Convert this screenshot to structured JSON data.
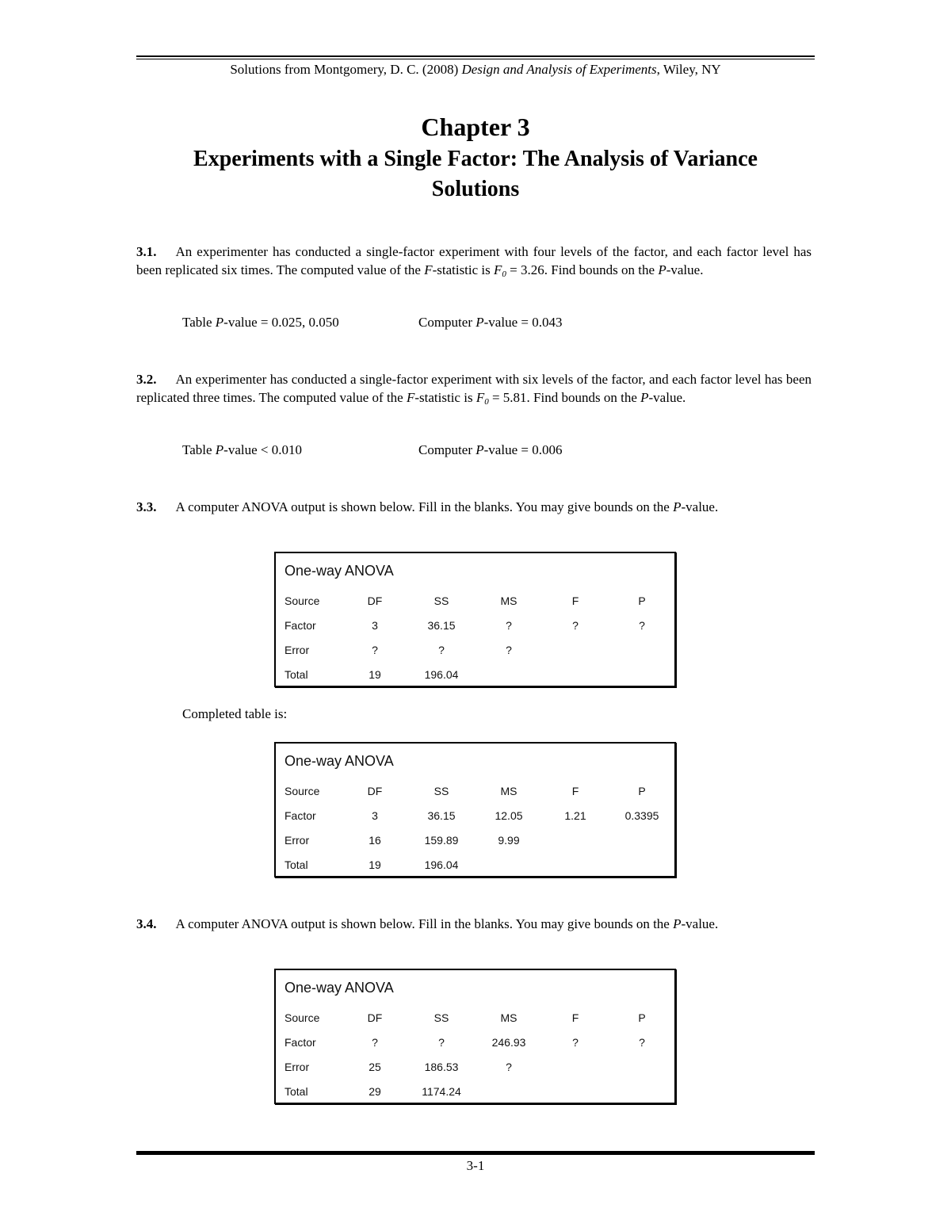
{
  "header": {
    "pre": "Solutions from Montgomery, D. C. (2008) ",
    "book": "Design and Analysis of Experiments",
    "post": ", Wiley, NY"
  },
  "chapter": "Chapter 3",
  "subtitle": "Experiments with a Single Factor:  The Analysis of Variance",
  "solutions": "Solutions",
  "problems": [
    {
      "num": "3.1.",
      "segments": [
        [
          "An experimenter has conducted a single-factor experiment with four levels of the factor, and each factor level has been replicated six times.  The computed value of the ",
          0
        ],
        [
          "F",
          1
        ],
        [
          "-statistic is ",
          0
        ],
        [
          "F",
          1
        ],
        [
          "0",
          2
        ],
        [
          " = 3.26.  Find bounds on the ",
          0
        ],
        [
          "P",
          1
        ],
        [
          "-value.",
          0
        ]
      ],
      "answer": {
        "left": [
          [
            "Table ",
            0
          ],
          [
            "P",
            1
          ],
          [
            "-value = 0.025, 0.050",
            0
          ]
        ],
        "right": [
          [
            "Computer ",
            0
          ],
          [
            "P",
            1
          ],
          [
            "-value = 0.043",
            0
          ]
        ]
      }
    },
    {
      "num": "3.2.",
      "segments": [
        [
          "An experimenter has conducted a single-factor experiment with six levels of the factor, and each factor level has been replicated three times.  The computed value of the ",
          0
        ],
        [
          "F",
          1
        ],
        [
          "-statistic is ",
          0
        ],
        [
          "F",
          1
        ],
        [
          "0",
          2
        ],
        [
          " = 5.81.  Find bounds on the ",
          0
        ],
        [
          "P",
          1
        ],
        [
          "-value.",
          0
        ]
      ],
      "answer": {
        "left": [
          [
            "Table ",
            0
          ],
          [
            "P",
            1
          ],
          [
            "-value < 0.010",
            0
          ]
        ],
        "right": [
          [
            "Computer ",
            0
          ],
          [
            "P",
            1
          ],
          [
            "-value = 0.006",
            0
          ]
        ]
      }
    },
    {
      "num": "3.3.",
      "segments": [
        [
          "A computer ANOVA output is shown below.  Fill in the blanks.  You may give bounds on the ",
          0
        ],
        [
          "P",
          1
        ],
        [
          "-value.",
          0
        ]
      ]
    },
    {
      "num": "3.4.",
      "segments": [
        [
          "A computer ANOVA output is shown below.  Fill in the blanks.  You may give bounds on the ",
          0
        ],
        [
          "P",
          1
        ],
        [
          "-value.",
          0
        ]
      ]
    }
  ],
  "completed_label": "Completed table is:",
  "tables": [
    {
      "title": "One-way ANOVA",
      "columns": [
        "Source",
        "DF",
        "SS",
        "MS",
        "F",
        "P"
      ],
      "rows": [
        [
          "Factor",
          "3",
          "36.15",
          "?",
          "?",
          "?"
        ],
        [
          "Error",
          "?",
          "?",
          "?",
          "",
          ""
        ],
        [
          "Total",
          "19",
          "196.04",
          "",
          "",
          ""
        ]
      ]
    },
    {
      "title": "One-way ANOVA",
      "columns": [
        "Source",
        "DF",
        "SS",
        "MS",
        "F",
        "P"
      ],
      "rows": [
        [
          "Factor",
          "3",
          "36.15",
          "12.05",
          "1.21",
          "0.3395"
        ],
        [
          "Error",
          "16",
          "159.89",
          "9.99",
          "",
          ""
        ],
        [
          "Total",
          "19",
          "196.04",
          "",
          "",
          ""
        ]
      ]
    },
    {
      "title": "One-way ANOVA",
      "columns": [
        "Source",
        "DF",
        "SS",
        "MS",
        "F",
        "P"
      ],
      "rows": [
        [
          "Factor",
          "?",
          "?",
          "246.93",
          "?",
          "?"
        ],
        [
          "Error",
          "25",
          "186.53",
          "?",
          "",
          ""
        ],
        [
          "Total",
          "29",
          "1174.24",
          "",
          "",
          ""
        ]
      ]
    }
  ],
  "footer": "3-1"
}
